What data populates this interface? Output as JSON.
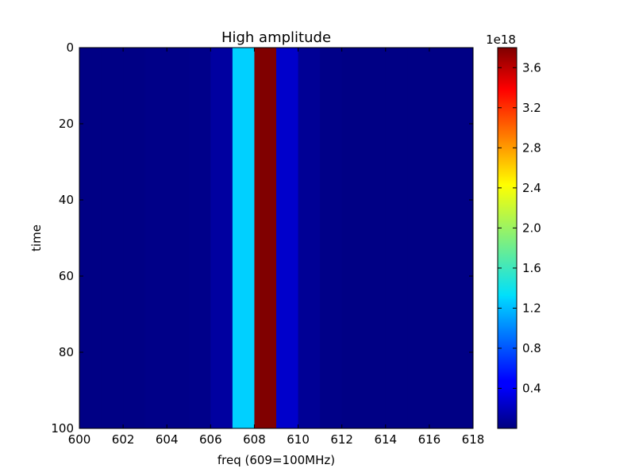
{
  "chart_data": {
    "type": "heatmap",
    "title": "High amplitude",
    "xlabel": "freq (609=100MHz)",
    "ylabel": "time",
    "x_range": [
      600,
      618
    ],
    "y_range": [
      0,
      100
    ],
    "y_inverted": true,
    "x_ticks": [
      "600",
      "602",
      "604",
      "606",
      "608",
      "610",
      "612",
      "614",
      "616",
      "618"
    ],
    "y_ticks": [
      "0",
      "20",
      "40",
      "60",
      "80",
      "100"
    ],
    "columns": [
      {
        "x0": 600,
        "x1": 601,
        "value": 0.02
      },
      {
        "x0": 601,
        "x1": 602,
        "value": 0.02
      },
      {
        "x0": 602,
        "x1": 603,
        "value": 0.02
      },
      {
        "x0": 603,
        "x1": 604,
        "value": 0.03
      },
      {
        "x0": 604,
        "x1": 605,
        "value": 0.03
      },
      {
        "x0": 605,
        "x1": 606,
        "value": 0.04
      },
      {
        "x0": 606,
        "x1": 607,
        "value": 0.12
      },
      {
        "x0": 607,
        "x1": 608,
        "value": 1.25
      },
      {
        "x0": 608,
        "x1": 609,
        "value": 3.8
      },
      {
        "x0": 609,
        "x1": 610,
        "value": 0.28
      },
      {
        "x0": 610,
        "x1": 611,
        "value": 0.08
      },
      {
        "x0": 611,
        "x1": 612,
        "value": 0.03
      },
      {
        "x0": 612,
        "x1": 613,
        "value": 0.02
      },
      {
        "x0": 613,
        "x1": 614,
        "value": 0.02
      },
      {
        "x0": 614,
        "x1": 615,
        "value": 0.02
      },
      {
        "x0": 615,
        "x1": 616,
        "value": 0.02
      },
      {
        "x0": 616,
        "x1": 617,
        "value": 0.02
      },
      {
        "x0": 617,
        "x1": 618,
        "value": 0.02
      }
    ],
    "colorbar": {
      "colormap": "jet",
      "range": [
        0.0,
        3.8
      ],
      "ticks": [
        "0.4",
        "0.8",
        "1.2",
        "1.6",
        "2.0",
        "2.4",
        "2.8",
        "3.2",
        "3.6"
      ],
      "exponent_label": "1e18"
    },
    "grid": false,
    "legend": "none"
  }
}
